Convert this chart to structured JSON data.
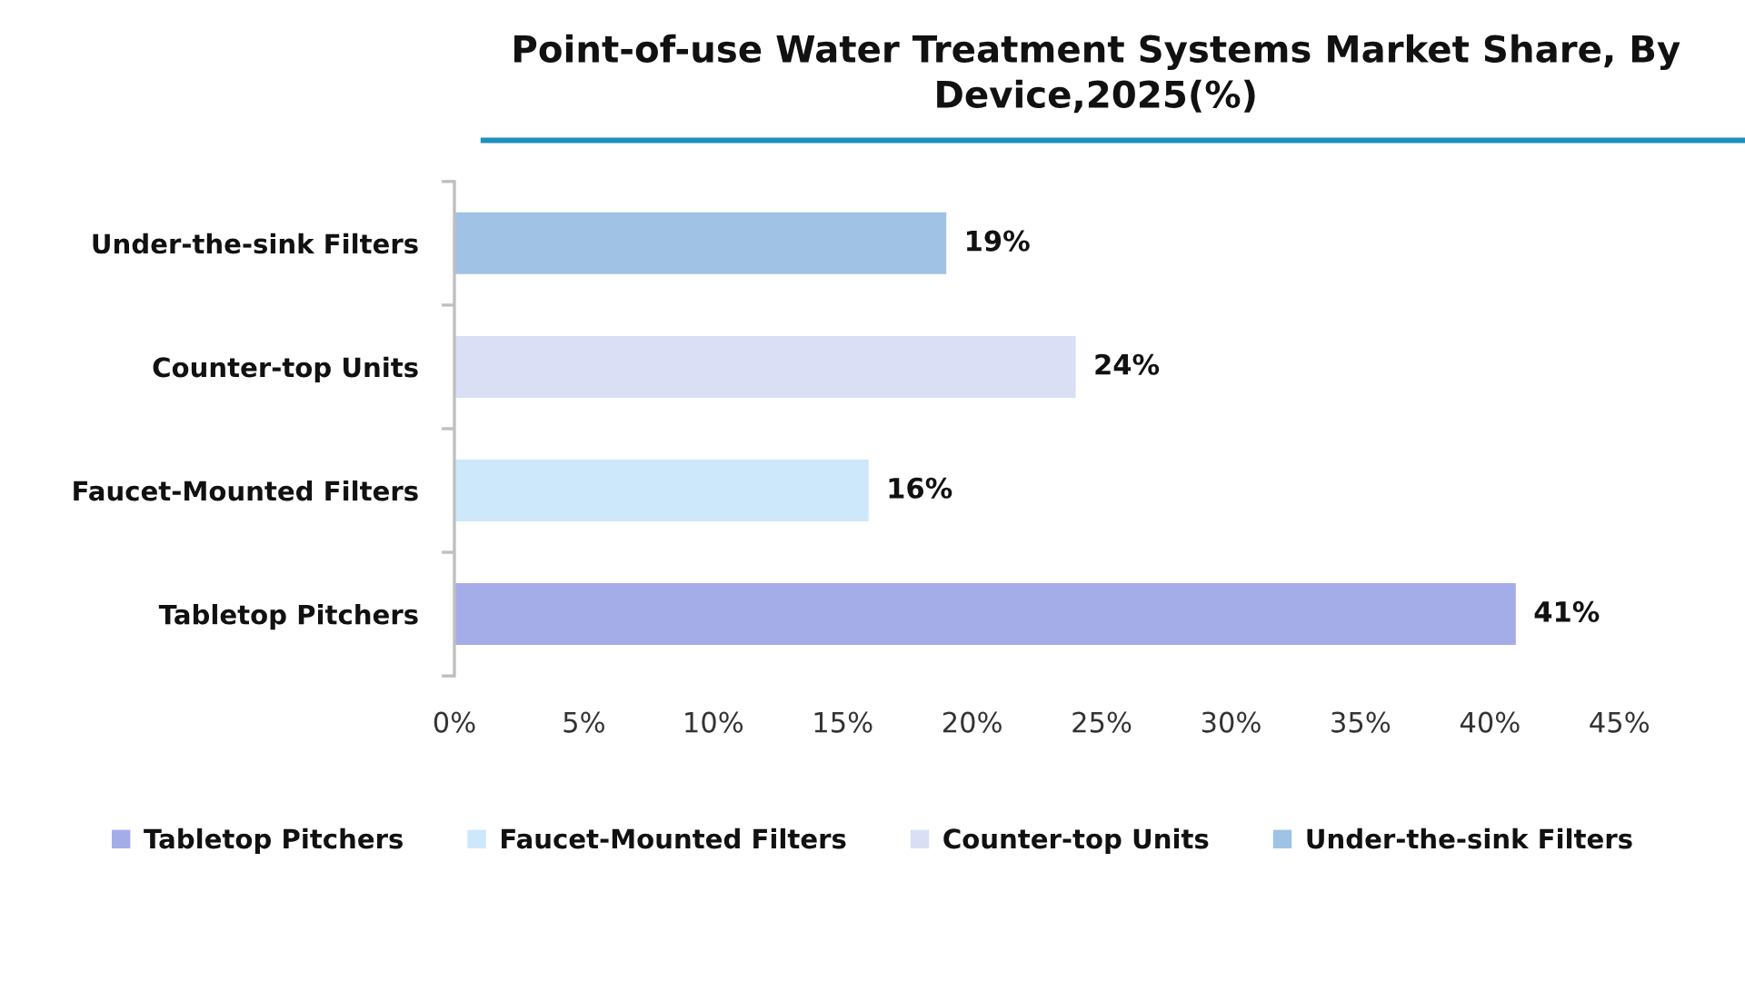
{
  "chart_data": {
    "type": "bar",
    "orientation": "horizontal",
    "title": "Point-of-use Water Treatment Systems Market Share, By Device,2025(%)",
    "categories": [
      "Under-the-sink Filters",
      "Counter-top Units",
      "Faucet-Mounted Filters",
      "Tabletop Pitchers"
    ],
    "series": [
      {
        "name": "Tabletop Pitchers",
        "color": "#a5ade9",
        "values": [
          null,
          null,
          null,
          41
        ],
        "value_labels": [
          null,
          null,
          null,
          "41%"
        ]
      },
      {
        "name": "Faucet-Mounted Filters",
        "color": "#cde8fb",
        "values": [
          null,
          null,
          16,
          null
        ],
        "value_labels": [
          null,
          null,
          "16%",
          null
        ]
      },
      {
        "name": "Counter-top Units",
        "color": "#dadff5",
        "values": [
          null,
          24,
          null,
          null
        ],
        "value_labels": [
          null,
          "24%",
          null,
          null
        ]
      },
      {
        "name": "Under-the-sink Filters",
        "color": "#a0c2e5",
        "values": [
          19,
          null,
          null,
          null
        ],
        "value_labels": [
          "19%",
          null,
          null,
          null
        ]
      }
    ],
    "xlim": [
      0,
      45
    ],
    "xticks": [
      {
        "value": 0,
        "label": "0%"
      },
      {
        "value": 5,
        "label": "5%"
      },
      {
        "value": 10,
        "label": "10%"
      },
      {
        "value": 15,
        "label": "15%"
      },
      {
        "value": 20,
        "label": "20%"
      },
      {
        "value": 25,
        "label": "25%"
      },
      {
        "value": 30,
        "label": "30%"
      },
      {
        "value": 35,
        "label": "35%"
      },
      {
        "value": 40,
        "label": "40%"
      },
      {
        "value": 45,
        "label": "45%"
      }
    ],
    "grid": false,
    "legend": "bottom"
  }
}
